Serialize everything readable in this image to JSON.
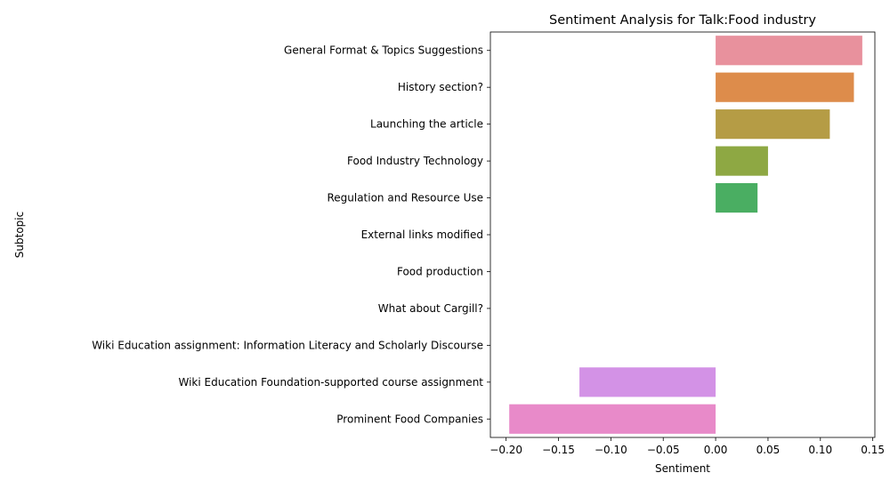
{
  "chart_data": {
    "type": "bar",
    "orientation": "horizontal",
    "title": "Sentiment Analysis for Talk:Food industry",
    "xlabel": "Sentiment",
    "ylabel": "Subtopic",
    "xlim": [
      -0.215,
      0.152
    ],
    "xticks": [
      -0.2,
      -0.15,
      -0.1,
      -0.05,
      0.0,
      0.05,
      0.1,
      0.15
    ],
    "xtick_labels": [
      "−0.20",
      "−0.15",
      "−0.10",
      "−0.05",
      "0.00",
      "0.05",
      "0.10",
      "0.15"
    ],
    "categories": [
      "General Format & Topics Suggestions",
      "History section?",
      "Launching the article",
      "Food Industry Technology",
      "Regulation and Resource Use",
      "External links modified",
      "Food production",
      "What about Cargill?",
      "Wiki Education assignment: Information Literacy and Scholarly Discourse",
      "Wiki Education Foundation-supported course assignment",
      "Prominent Food Companies"
    ],
    "values": [
      0.14,
      0.132,
      0.109,
      0.05,
      0.04,
      0.0,
      0.0,
      0.0,
      0.0,
      -0.13,
      -0.197
    ],
    "colors": [
      "#e8919d",
      "#dd8c4b",
      "#b59c45",
      "#8ea843",
      "#4aae62",
      "#4daf93",
      "#50abae",
      "#55a7c8",
      "#9b9cee",
      "#d392e6",
      "#e88ac9"
    ],
    "grid": false,
    "legend": "none"
  }
}
